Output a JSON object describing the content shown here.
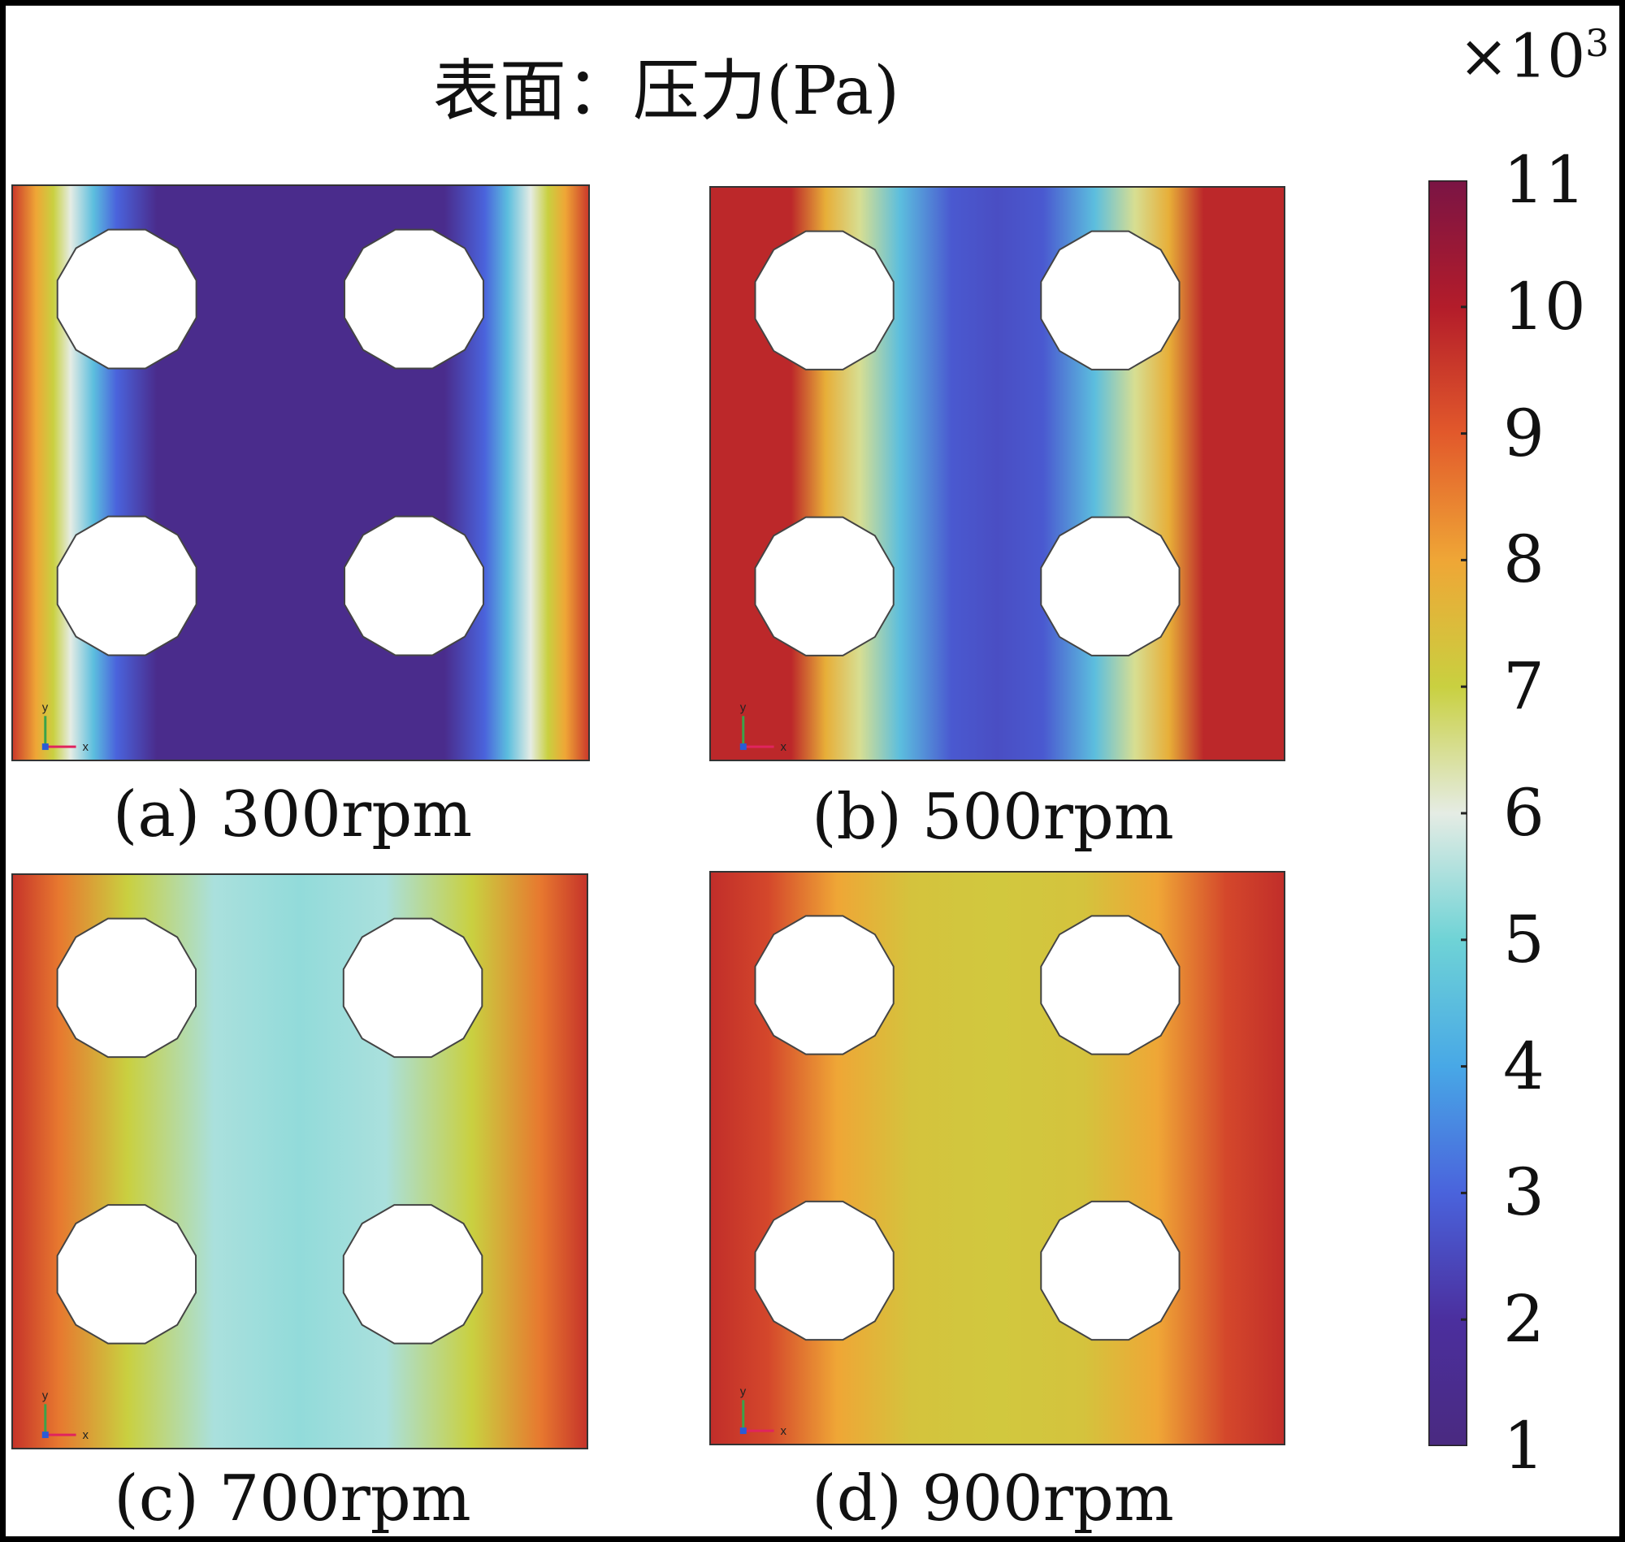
{
  "title": "表面：压力(Pa)",
  "colorbar": {
    "multiplier": "×10",
    "exponent": "3",
    "ticks": [
      "11",
      "10",
      "9",
      "8",
      "7",
      "6",
      "5",
      "4",
      "3",
      "2",
      "1"
    ],
    "colors_top_to_bottom": [
      "#7a1444",
      "#b31c2a",
      "#e2592b",
      "#efa636",
      "#c9d040",
      "#e5ece4",
      "#6fd3d6",
      "#48a8e6",
      "#4a63dc",
      "#4b2f9e",
      "#4a2a80"
    ]
  },
  "panels": [
    {
      "label": "(a) 300rpm",
      "axis_x": "x",
      "axis_y": "y"
    },
    {
      "label": "(b) 500rpm",
      "axis_x": "x",
      "axis_y": "y"
    },
    {
      "label": "(c) 700rpm",
      "axis_x": "x",
      "axis_y": "y"
    },
    {
      "label": "(d) 900rpm",
      "axis_x": "x",
      "axis_y": "y"
    }
  ],
  "chart_data": {
    "type": "heatmap",
    "title": "表面：压力(Pa)",
    "colorbar_range": [
      1000,
      11000
    ],
    "colorbar_ticks": [
      1,
      2,
      3,
      4,
      5,
      6,
      7,
      8,
      9,
      10,
      11
    ],
    "colorbar_scale_label": "×10^3",
    "panels": [
      {
        "name": "(a) 300rpm",
        "pressure_profile_x": [
          {
            "x": 0.0,
            "value": 9.5
          },
          {
            "x": 0.04,
            "value": 8.0
          },
          {
            "x": 0.07,
            "value": 7.0
          },
          {
            "x": 0.1,
            "value": 6.0
          },
          {
            "x": 0.14,
            "value": 4.5
          },
          {
            "x": 0.18,
            "value": 3.0
          },
          {
            "x": 0.25,
            "value": 1.4
          },
          {
            "x": 0.5,
            "value": 1.4
          },
          {
            "x": 0.75,
            "value": 1.4
          },
          {
            "x": 0.82,
            "value": 3.0
          },
          {
            "x": 0.86,
            "value": 4.5
          },
          {
            "x": 0.9,
            "value": 6.0
          },
          {
            "x": 0.93,
            "value": 7.0
          },
          {
            "x": 0.96,
            "value": 8.0
          },
          {
            "x": 1.0,
            "value": 9.5
          }
        ]
      },
      {
        "name": "(b) 500rpm",
        "pressure_profile_x": [
          {
            "x": 0.0,
            "value": 9.8
          },
          {
            "x": 0.14,
            "value": 9.8
          },
          {
            "x": 0.2,
            "value": 7.8
          },
          {
            "x": 0.26,
            "value": 6.5
          },
          {
            "x": 0.33,
            "value": 4.5
          },
          {
            "x": 0.42,
            "value": 2.8
          },
          {
            "x": 0.5,
            "value": 2.6
          },
          {
            "x": 0.58,
            "value": 2.8
          },
          {
            "x": 0.67,
            "value": 4.5
          },
          {
            "x": 0.74,
            "value": 6.5
          },
          {
            "x": 0.8,
            "value": 7.8
          },
          {
            "x": 0.86,
            "value": 9.8
          },
          {
            "x": 1.0,
            "value": 9.8
          }
        ]
      },
      {
        "name": "(c) 700rpm",
        "pressure_profile_x": [
          {
            "x": 0.0,
            "value": 9.6
          },
          {
            "x": 0.08,
            "value": 8.6
          },
          {
            "x": 0.2,
            "value": 7.0
          },
          {
            "x": 0.35,
            "value": 5.5
          },
          {
            "x": 0.5,
            "value": 5.3
          },
          {
            "x": 0.65,
            "value": 5.5
          },
          {
            "x": 0.8,
            "value": 7.0
          },
          {
            "x": 0.92,
            "value": 8.6
          },
          {
            "x": 1.0,
            "value": 9.6
          }
        ]
      },
      {
        "name": "(d) 900rpm",
        "pressure_profile_x": [
          {
            "x": 0.0,
            "value": 9.7
          },
          {
            "x": 0.1,
            "value": 9.3
          },
          {
            "x": 0.22,
            "value": 8.0
          },
          {
            "x": 0.35,
            "value": 7.3
          },
          {
            "x": 0.5,
            "value": 7.2
          },
          {
            "x": 0.65,
            "value": 7.3
          },
          {
            "x": 0.78,
            "value": 8.0
          },
          {
            "x": 0.9,
            "value": 9.3
          },
          {
            "x": 1.0,
            "value": 9.7
          }
        ]
      }
    ]
  }
}
